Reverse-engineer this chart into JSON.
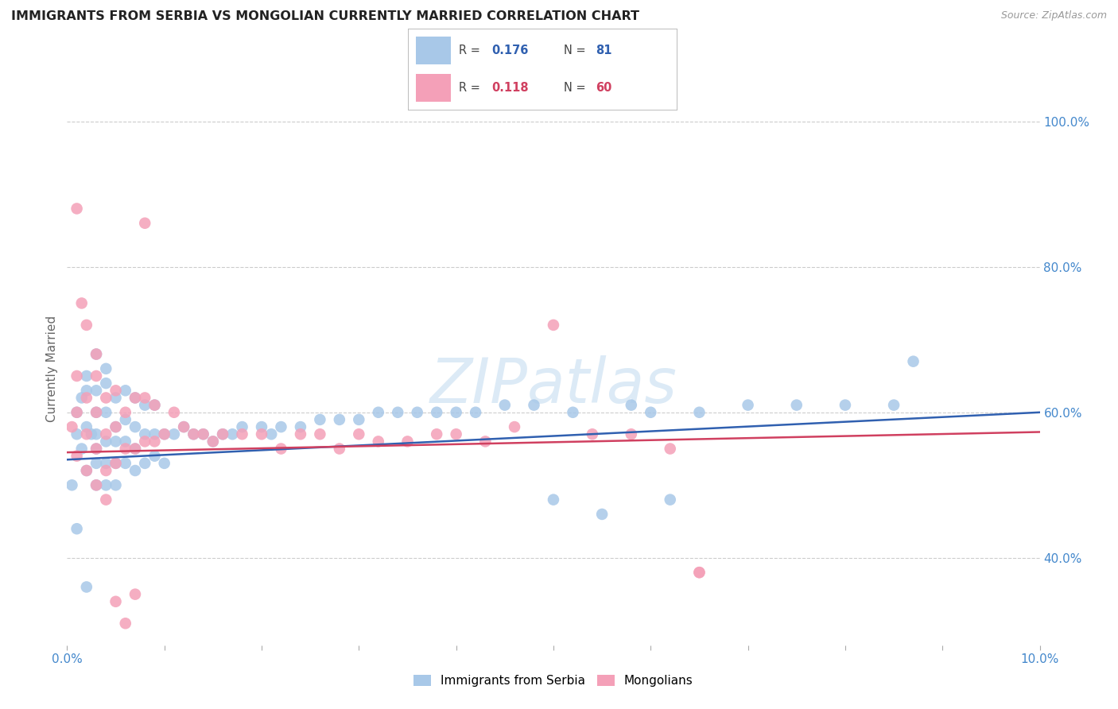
{
  "title": "IMMIGRANTS FROM SERBIA VS MONGOLIAN CURRENTLY MARRIED CORRELATION CHART",
  "source": "Source: ZipAtlas.com",
  "ylabel": "Currently Married",
  "xlim": [
    0.0,
    0.1
  ],
  "ylim": [
    0.28,
    1.04
  ],
  "yticks": [
    0.4,
    0.6,
    0.8,
    1.0
  ],
  "ytick_labels": [
    "40.0%",
    "60.0%",
    "80.0%",
    "100.0%"
  ],
  "xticks": [
    0.0,
    0.01,
    0.02,
    0.03,
    0.04,
    0.05,
    0.06,
    0.07,
    0.08,
    0.09,
    0.1
  ],
  "xtick_labels": [
    "0.0%",
    "",
    "",
    "",
    "",
    "",
    "",
    "",
    "",
    "",
    "10.0%"
  ],
  "serbia_color": "#a8c8e8",
  "mongolia_color": "#f4a0b8",
  "serbia_line_color": "#3060b0",
  "mongolia_line_color": "#d04060",
  "serbia_R": "0.176",
  "serbia_N": "81",
  "mongolia_R": "0.118",
  "mongolia_N": "60",
  "watermark": "ZIPatlas",
  "serbia_x": [
    0.0005,
    0.001,
    0.001,
    0.0015,
    0.0015,
    0.002,
    0.002,
    0.002,
    0.002,
    0.0025,
    0.003,
    0.003,
    0.003,
    0.003,
    0.003,
    0.003,
    0.004,
    0.004,
    0.004,
    0.004,
    0.004,
    0.005,
    0.005,
    0.005,
    0.005,
    0.005,
    0.006,
    0.006,
    0.006,
    0.006,
    0.007,
    0.007,
    0.007,
    0.007,
    0.008,
    0.008,
    0.008,
    0.009,
    0.009,
    0.009,
    0.01,
    0.01,
    0.011,
    0.012,
    0.013,
    0.014,
    0.015,
    0.016,
    0.017,
    0.018,
    0.02,
    0.021,
    0.022,
    0.024,
    0.026,
    0.028,
    0.03,
    0.032,
    0.034,
    0.036,
    0.038,
    0.04,
    0.042,
    0.045,
    0.048,
    0.05,
    0.052,
    0.055,
    0.058,
    0.06,
    0.062,
    0.065,
    0.07,
    0.075,
    0.08,
    0.085,
    0.087,
    0.001,
    0.002,
    0.003,
    0.004
  ],
  "serbia_y": [
    0.5,
    0.57,
    0.6,
    0.55,
    0.62,
    0.52,
    0.58,
    0.63,
    0.65,
    0.57,
    0.5,
    0.53,
    0.55,
    0.57,
    0.6,
    0.63,
    0.5,
    0.53,
    0.56,
    0.6,
    0.64,
    0.5,
    0.53,
    0.56,
    0.58,
    0.62,
    0.53,
    0.56,
    0.59,
    0.63,
    0.52,
    0.55,
    0.58,
    0.62,
    0.53,
    0.57,
    0.61,
    0.54,
    0.57,
    0.61,
    0.53,
    0.57,
    0.57,
    0.58,
    0.57,
    0.57,
    0.56,
    0.57,
    0.57,
    0.58,
    0.58,
    0.57,
    0.58,
    0.58,
    0.59,
    0.59,
    0.59,
    0.6,
    0.6,
    0.6,
    0.6,
    0.6,
    0.6,
    0.61,
    0.61,
    0.48,
    0.6,
    0.46,
    0.61,
    0.6,
    0.48,
    0.6,
    0.61,
    0.61,
    0.61,
    0.61,
    0.67,
    0.44,
    0.36,
    0.68,
    0.66
  ],
  "mongolia_x": [
    0.0005,
    0.001,
    0.001,
    0.001,
    0.002,
    0.002,
    0.002,
    0.003,
    0.003,
    0.003,
    0.003,
    0.004,
    0.004,
    0.004,
    0.005,
    0.005,
    0.005,
    0.006,
    0.006,
    0.007,
    0.007,
    0.008,
    0.008,
    0.009,
    0.009,
    0.01,
    0.011,
    0.012,
    0.013,
    0.014,
    0.015,
    0.016,
    0.018,
    0.02,
    0.022,
    0.024,
    0.026,
    0.028,
    0.03,
    0.032,
    0.035,
    0.038,
    0.04,
    0.043,
    0.046,
    0.05,
    0.054,
    0.058,
    0.062,
    0.065,
    0.001,
    0.0015,
    0.002,
    0.003,
    0.004,
    0.005,
    0.006,
    0.007,
    0.008,
    0.065
  ],
  "mongolia_y": [
    0.58,
    0.54,
    0.6,
    0.65,
    0.52,
    0.57,
    0.62,
    0.5,
    0.55,
    0.6,
    0.65,
    0.52,
    0.57,
    0.62,
    0.53,
    0.58,
    0.63,
    0.55,
    0.6,
    0.55,
    0.62,
    0.56,
    0.62,
    0.56,
    0.61,
    0.57,
    0.6,
    0.58,
    0.57,
    0.57,
    0.56,
    0.57,
    0.57,
    0.57,
    0.55,
    0.57,
    0.57,
    0.55,
    0.57,
    0.56,
    0.56,
    0.57,
    0.57,
    0.56,
    0.58,
    0.72,
    0.57,
    0.57,
    0.55,
    0.38,
    0.88,
    0.75,
    0.72,
    0.68,
    0.48,
    0.34,
    0.31,
    0.35,
    0.86,
    0.38
  ]
}
